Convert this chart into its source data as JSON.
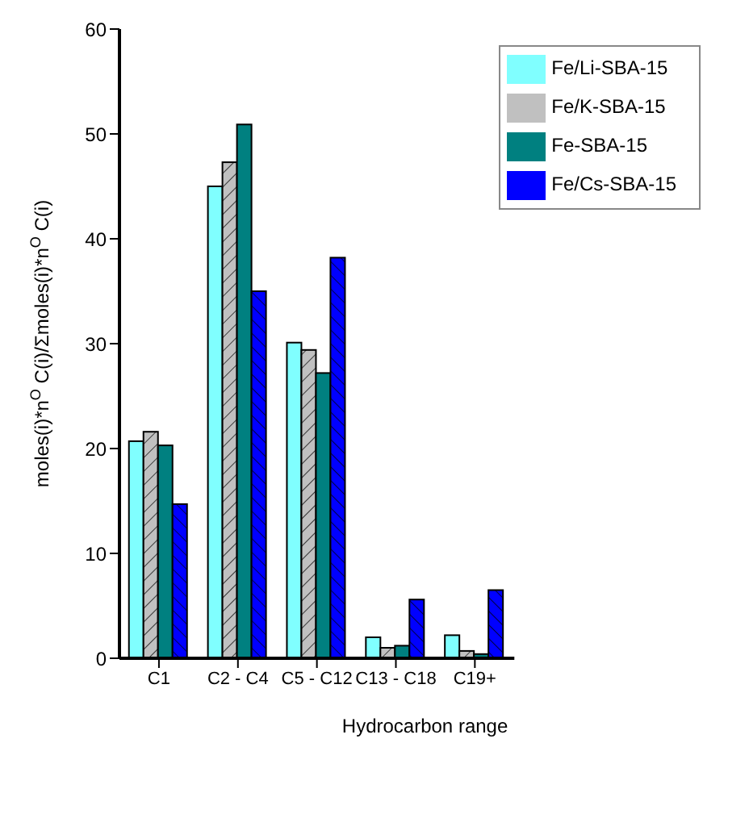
{
  "chart_data": {
    "type": "bar",
    "xlabel": "Hydrocarbon range",
    "ylabel": "moles(i)*n$^{O}$C(i)/Σmoles(i)*n$^{O}$C(i)",
    "categories": [
      "C1",
      "C2 - C4",
      "C5 - C12",
      "C13 - C18",
      "C19+"
    ],
    "series": [
      {
        "name": "Fe/Li-SBA-15",
        "color": "#80ffff",
        "values": [
          20.7,
          45.0,
          30.1,
          2.0,
          2.2
        ]
      },
      {
        "name": "Fe/K-SBA-15",
        "color": "#c0c0c0",
        "values": [
          21.6,
          47.3,
          29.4,
          1.0,
          0.7
        ]
      },
      {
        "name": "Fe-SBA-15",
        "color": "#008080",
        "values": [
          20.3,
          50.9,
          27.2,
          1.2,
          0.4
        ]
      },
      {
        "name": "Fe/Cs-SBA-15",
        "color": "#0000ff",
        "values": [
          14.7,
          35.0,
          38.2,
          5.6,
          6.5
        ]
      }
    ],
    "ylim": [
      0,
      60
    ],
    "yticks": [
      0,
      10,
      20,
      30,
      40,
      50,
      60
    ],
    "grid": false,
    "legend": "top right"
  }
}
